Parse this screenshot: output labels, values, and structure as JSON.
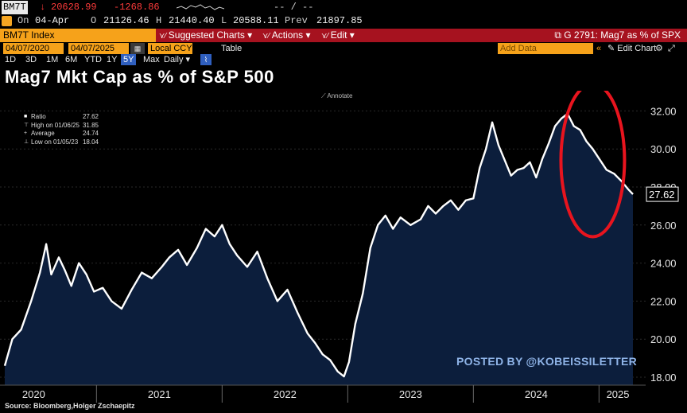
{
  "quote": {
    "ticker": "BM7T",
    "arrow": "↓",
    "last": "20628.99",
    "change": "-1268.86",
    "dash": "-- / --",
    "on_label": "On",
    "on_date": "04-Apr",
    "o_label": "O",
    "open": "21126.46",
    "h_label": "H",
    "high": "21440.40",
    "l_label": "L",
    "low": "20588.11",
    "prev_label": "Prev",
    "prev": "21897.85"
  },
  "command_bar": {
    "security": "BM7T Index",
    "suggested": "Suggested Charts ▾",
    "actions": "Actions ▾",
    "edit": "Edit ▾",
    "right": "G 2791: Mag7 as % of SPX"
  },
  "toolbar": {
    "start_date": "04/07/2020",
    "end_date": "04/07/2025",
    "currency": "Local CCY",
    "table_label": "Table",
    "ranges": [
      "1D",
      "3D",
      "1M",
      "6M",
      "YTD",
      "1Y",
      "5Y",
      "Max"
    ],
    "active_range": "5Y",
    "frequency": "Daily ▾",
    "add_data": "Add Data",
    "edit_chart": "Edit Chart"
  },
  "annotate_label": "Annotate",
  "legend": {
    "items": [
      {
        "name": "Ratio",
        "value": "27.62"
      },
      {
        "name": "High on 01/06/25",
        "value": "31.85"
      },
      {
        "name": "Average",
        "value": "24.74"
      },
      {
        "name": "Low on 01/05/23",
        "value": "18.04"
      }
    ]
  },
  "watermark": "POSTED BY @KOBEISSILETTER",
  "source": "Source: Bloomberg,Holger Zschaepitz",
  "colors": {
    "background": "#000000",
    "line": "#ffffff",
    "area_fill": "#0c1e3c",
    "highlight_ellipse": "#e8141e",
    "command_bar": "#a6121f",
    "orange": "#f6a21a"
  },
  "chart_data": {
    "type": "area",
    "title": "Mag7 Mkt Cap as % of S&P 500",
    "xlabel": "",
    "ylabel": "",
    "ylim": [
      18,
      32.5
    ],
    "y_ticks": [
      "18.00",
      "20.00",
      "22.00",
      "24.00",
      "26.00",
      "28.00",
      "30.00",
      "32.00"
    ],
    "x_ticks": [
      "2020",
      "2021",
      "2022",
      "2023",
      "2024",
      "2025"
    ],
    "last_value_label": "27.62",
    "grid": true,
    "series": [
      {
        "name": "Ratio",
        "x": [
          2020.27,
          2020.33,
          2020.4,
          2020.48,
          2020.55,
          2020.6,
          2020.64,
          2020.7,
          2020.75,
          2020.8,
          2020.86,
          2020.92,
          2020.98,
          2021.05,
          2021.12,
          2021.2,
          2021.28,
          2021.36,
          2021.44,
          2021.52,
          2021.58,
          2021.65,
          2021.72,
          2021.8,
          2021.87,
          2021.94,
          2022.0,
          2022.06,
          2022.12,
          2022.2,
          2022.28,
          2022.36,
          2022.44,
          2022.52,
          2022.6,
          2022.68,
          2022.74,
          2022.8,
          2022.86,
          2022.92,
          2022.97,
          2023.01,
          2023.06,
          2023.12,
          2023.18,
          2023.24,
          2023.3,
          2023.36,
          2023.42,
          2023.5,
          2023.58,
          2023.64,
          2023.7,
          2023.76,
          2023.82,
          2023.88,
          2023.94,
          2024.0,
          2024.05,
          2024.1,
          2024.15,
          2024.2,
          2024.25,
          2024.3,
          2024.35,
          2024.4,
          2024.45,
          2024.5,
          2024.55,
          2024.6,
          2024.65,
          2024.7,
          2024.75,
          2024.8,
          2024.85,
          2024.9,
          2024.95,
          2025.01,
          2025.06,
          2025.12,
          2025.18,
          2025.23,
          2025.27
        ],
        "values": [
          18.6,
          20.0,
          20.5,
          22.0,
          23.5,
          25.0,
          23.4,
          24.3,
          23.6,
          22.8,
          24.0,
          23.4,
          22.5,
          22.7,
          22.0,
          21.6,
          22.6,
          23.5,
          23.2,
          23.8,
          24.3,
          24.7,
          23.9,
          24.8,
          25.8,
          25.4,
          26.0,
          25.0,
          24.4,
          23.8,
          24.6,
          23.2,
          22.0,
          22.6,
          21.4,
          20.3,
          19.8,
          19.2,
          18.9,
          18.3,
          18.04,
          18.8,
          20.8,
          22.4,
          24.8,
          26.0,
          26.5,
          25.8,
          26.4,
          26.0,
          26.3,
          27.0,
          26.6,
          27.0,
          27.3,
          26.8,
          27.3,
          27.4,
          29.0,
          30.0,
          31.4,
          30.2,
          29.4,
          28.6,
          28.9,
          29.0,
          29.3,
          28.5,
          29.5,
          30.3,
          31.2,
          31.6,
          31.85,
          31.2,
          31.0,
          30.4,
          30.0,
          29.4,
          28.9,
          28.7,
          28.3,
          27.9,
          27.62
        ]
      }
    ]
  }
}
